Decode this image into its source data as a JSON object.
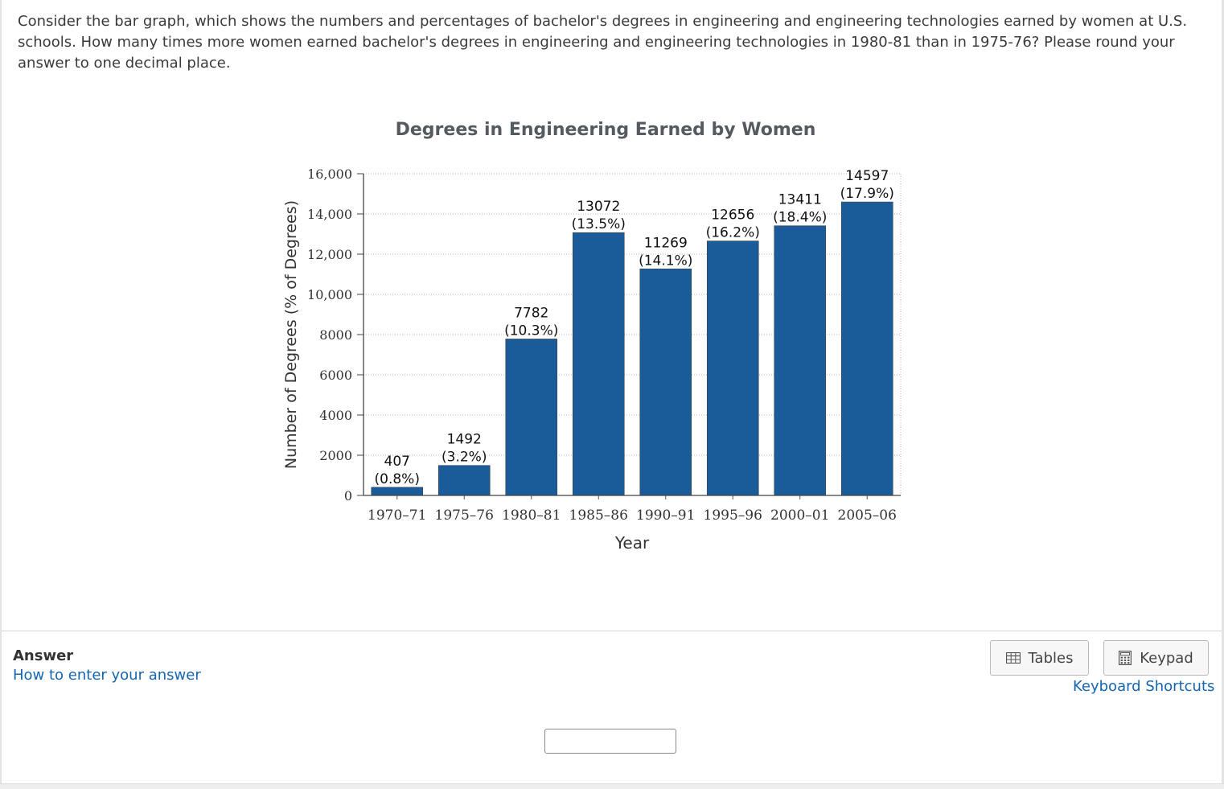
{
  "question": {
    "text": "Consider the bar graph, which shows the numbers and percentages of bachelor's degrees in engineering and engineering technologies earned by women at U.S. schools. How many times more women earned bachelor's degrees in engineering and engineering technologies in 1980-81 than in 1975-76? Please round your answer to one decimal place."
  },
  "chart_data": {
    "type": "bar",
    "title": "Degrees in Engineering Earned by Women",
    "xlabel": "Year",
    "ylabel": "Number of Degrees (% of Degrees)",
    "categories": [
      "1970–71",
      "1975–76",
      "1980–81",
      "1985–86",
      "1990–91",
      "1995–96",
      "2000–01",
      "2005–06"
    ],
    "values": [
      407,
      1492,
      7782,
      13072,
      11269,
      12656,
      13411,
      14597
    ],
    "percent_labels": [
      "(0.8%)",
      "(3.2%)",
      "(10.3%)",
      "(13.5%)",
      "(14.1%)",
      "(16.2%)",
      "(18.4%)",
      "(17.9%)"
    ],
    "yticks": [
      0,
      2000,
      4000,
      6000,
      8000,
      10000,
      12000,
      14000,
      16000
    ],
    "ytick_labels": [
      "0",
      "2000",
      "4000",
      "6000",
      "8000",
      "10,000",
      "12,000",
      "14,000",
      "16,000"
    ],
    "ylim": [
      0,
      16000
    ],
    "grid": true,
    "bar_color": "#1a5b99"
  },
  "answer": {
    "label": "Answer",
    "howto_link": "How to enter your answer",
    "tables_label": "Tables",
    "keypad_label": "Keypad",
    "shortcuts_link": "Keyboard Shortcuts",
    "input_value": ""
  }
}
